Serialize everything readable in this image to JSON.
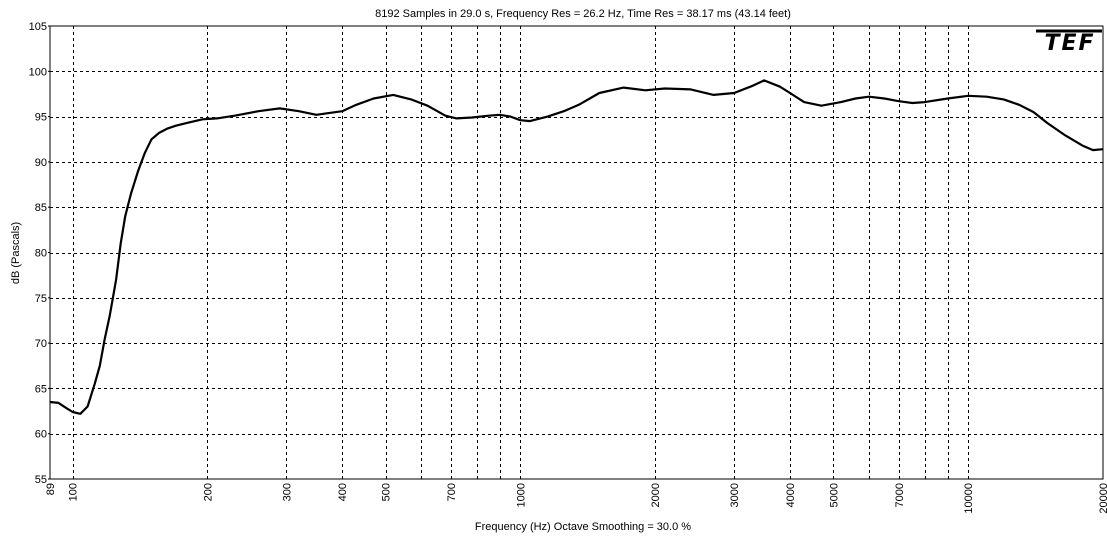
{
  "chart_data": {
    "type": "line",
    "title": "8192 Samples in 29.0 s, Frequency Res = 26.2 Hz, Time Res = 38.17 ms (43.14 feet)",
    "xlabel": "Frequency (Hz) Octave Smoothing = 30.0 %",
    "ylabel": "dB (Pascals)",
    "logo": "TEF",
    "x_scale": "log",
    "xlim": [
      89,
      20000
    ],
    "ylim": [
      55,
      105
    ],
    "grid": true,
    "y_ticks": [
      55,
      60,
      65,
      70,
      75,
      80,
      85,
      90,
      95,
      100,
      105
    ],
    "x_tick_labels": [
      {
        "value": 89,
        "label": "89"
      },
      {
        "value": 100,
        "label": "100"
      },
      {
        "value": 200,
        "label": "200"
      },
      {
        "value": 300,
        "label": "300"
      },
      {
        "value": 400,
        "label": "400"
      },
      {
        "value": 500,
        "label": "500"
      },
      {
        "value": 700,
        "label": "700"
      },
      {
        "value": 1000,
        "label": "1000"
      },
      {
        "value": 2000,
        "label": "2000"
      },
      {
        "value": 3000,
        "label": "3000"
      },
      {
        "value": 4000,
        "label": "4000"
      },
      {
        "value": 5000,
        "label": "5000"
      },
      {
        "value": 7000,
        "label": "7000"
      },
      {
        "value": 10000,
        "label": "10000"
      },
      {
        "value": 20000,
        "label": "20000"
      }
    ],
    "x_gridlines": [
      100,
      200,
      300,
      400,
      500,
      600,
      700,
      800,
      900,
      1000,
      2000,
      3000,
      4000,
      5000,
      6000,
      7000,
      8000,
      9000,
      10000
    ],
    "series": [
      {
        "x": [
          89,
          93,
          97,
          100,
          104,
          108,
          112,
          115,
          118,
          121,
          125,
          128,
          131,
          135,
          140,
          145,
          150,
          156,
          163,
          170,
          180,
          195,
          210,
          230,
          260,
          290,
          320,
          350,
          400,
          430,
          470,
          520,
          570,
          620,
          680,
          720,
          780,
          850,
          900,
          950,
          1000,
          1050,
          1150,
          1250,
          1350,
          1500,
          1700,
          1900,
          2100,
          2400,
          2700,
          3000,
          3300,
          3500,
          3800,
          4000,
          4300,
          4700,
          5200,
          5600,
          6000,
          6500,
          7000,
          7500,
          8000,
          9000,
          10000,
          11000,
          12000,
          13000,
          14000,
          15000,
          16500,
          18000,
          19000,
          20000
        ],
        "y": [
          63.5,
          63.4,
          62.8,
          62.4,
          62.2,
          63.0,
          65.5,
          67.5,
          70.5,
          73.0,
          77.0,
          81.0,
          84.0,
          86.5,
          89.0,
          91.0,
          92.5,
          93.2,
          93.7,
          94.0,
          94.3,
          94.7,
          94.8,
          95.1,
          95.6,
          95.9,
          95.6,
          95.2,
          95.6,
          96.3,
          97.0,
          97.4,
          96.9,
          96.2,
          95.1,
          94.8,
          94.9,
          95.1,
          95.2,
          95.0,
          94.6,
          94.5,
          95.0,
          95.6,
          96.3,
          97.6,
          98.2,
          97.9,
          98.1,
          98.0,
          97.4,
          97.6,
          98.4,
          99.0,
          98.3,
          97.6,
          96.6,
          96.2,
          96.6,
          97.0,
          97.2,
          97.0,
          96.7,
          96.5,
          96.6,
          97.0,
          97.3,
          97.2,
          96.9,
          96.3,
          95.5,
          94.3,
          92.9,
          91.8,
          91.3,
          91.4
        ]
      }
    ]
  }
}
